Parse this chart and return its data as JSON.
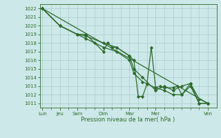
{
  "background_color": "#cde8e8",
  "grid_color": "#a8cccc",
  "line_color": "#2d6a2d",
  "marker_color": "#2d6a2d",
  "text_color": "#2d6a2d",
  "xlabel": "Pression niveau de la mer( hPa )",
  "ylim": [
    1010.5,
    1022.5
  ],
  "yticks": [
    1011,
    1012,
    1013,
    1014,
    1015,
    1016,
    1017,
    1018,
    1019,
    1020,
    1021,
    1022
  ],
  "xtick_major_labels": [
    "Lun",
    "Jeu",
    "Sam",
    "Dim",
    "Mar",
    "Mer",
    "Ven"
  ],
  "xtick_major_positions": [
    0,
    2,
    4,
    7,
    10,
    13,
    19
  ],
  "xlim": [
    -0.3,
    20.0
  ],
  "series1": {
    "x": [
      0,
      2,
      4,
      5,
      6,
      7,
      7.5,
      8,
      8.5,
      10,
      10.5,
      11,
      11.5,
      12,
      12.5,
      13,
      13.5,
      14,
      15,
      15.5,
      16,
      17,
      18,
      19
    ],
    "y": [
      1022,
      1020,
      1019,
      1019,
      1018,
      1017,
      1018,
      1017.5,
      1017.5,
      1016.5,
      1016,
      1011.8,
      1011.8,
      1013.2,
      1017.5,
      1012.8,
      1013,
      1012.8,
      1012.8,
      1013,
      1012,
      1013.3,
      1011,
      1011
    ]
  },
  "series2_linear": {
    "x": [
      0,
      19
    ],
    "y": [
      1022,
      1011
    ]
  },
  "series3": {
    "x": [
      0,
      2,
      4,
      5,
      7,
      8.5,
      10,
      10.5,
      11.5,
      13,
      14,
      15,
      16,
      17,
      18,
      19
    ],
    "y": [
      1022,
      1020,
      1019,
      1018.8,
      1018,
      1017.5,
      1016.5,
      1015,
      1014,
      1012.5,
      1013,
      1012.5,
      1013,
      1013.3,
      1011.5,
      1011
    ]
  },
  "series4": {
    "x": [
      0,
      2,
      4,
      5,
      7,
      8.5,
      10,
      10.5,
      11.5,
      13,
      14,
      15,
      16,
      17,
      18,
      19
    ],
    "y": [
      1022,
      1020,
      1019,
      1018.5,
      1017.5,
      1017,
      1016,
      1014.5,
      1013.5,
      1012.8,
      1012.5,
      1012,
      1012,
      1013,
      1011,
      1011
    ]
  }
}
